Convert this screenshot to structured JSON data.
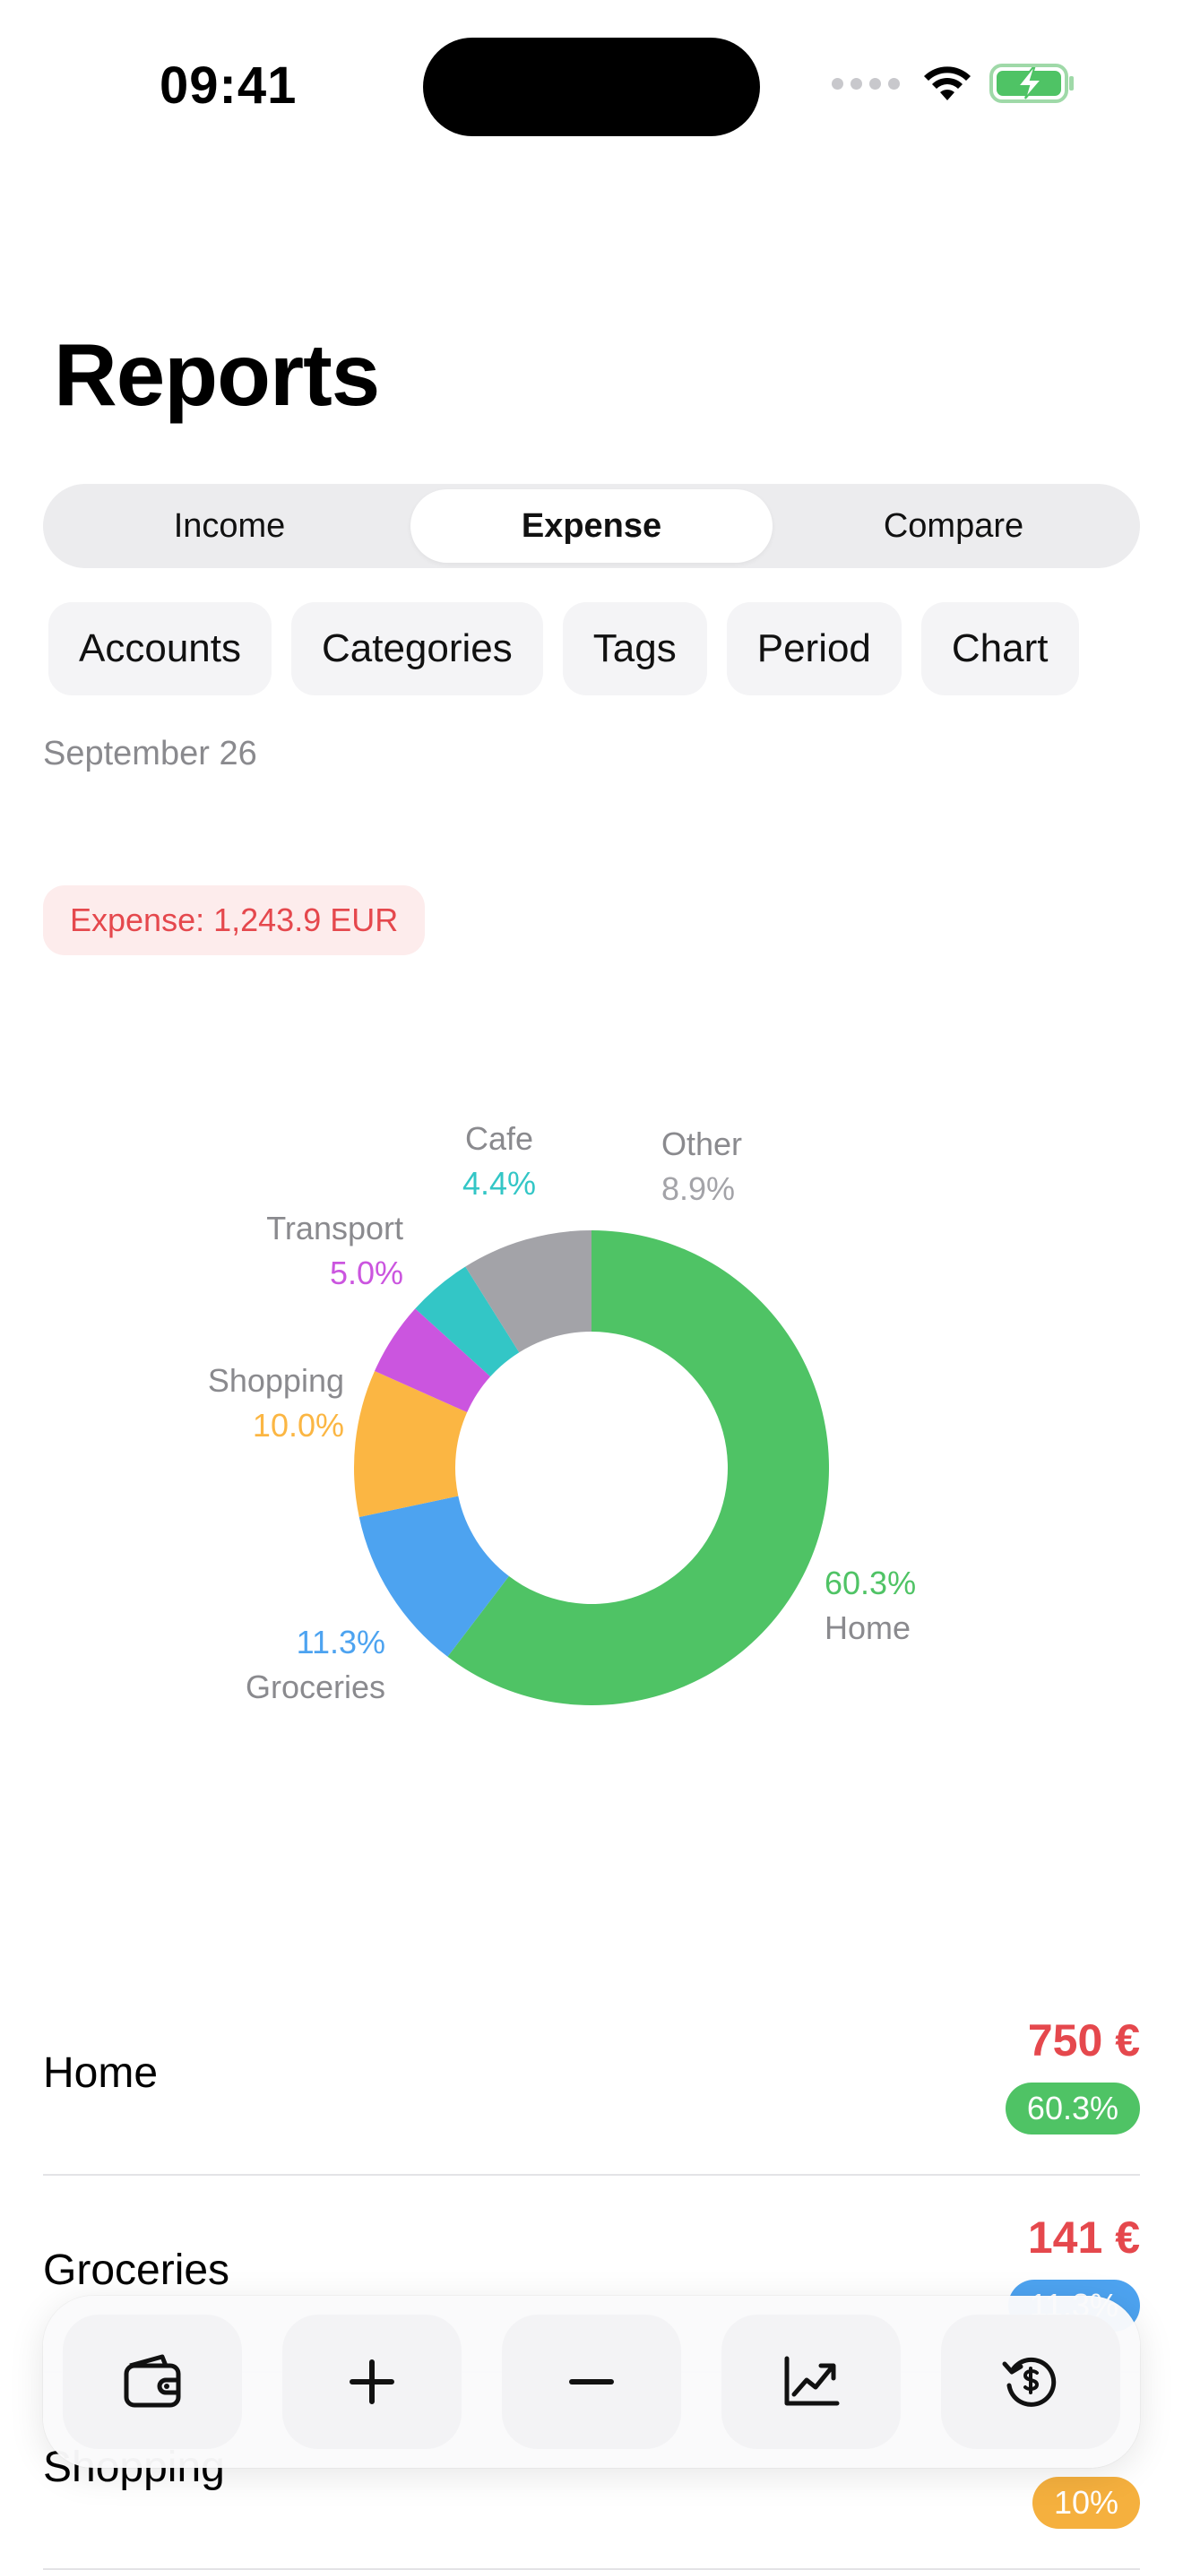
{
  "status_bar": {
    "time": "09:41"
  },
  "header": {
    "title": "Reports"
  },
  "tabs": [
    {
      "label": "Income",
      "active": false
    },
    {
      "label": "Expense",
      "active": true
    },
    {
      "label": "Compare",
      "active": false
    }
  ],
  "filters": [
    "Accounts",
    "Categories",
    "Tags",
    "Period",
    "Chart"
  ],
  "period_label": "September 26",
  "summary": {
    "expense_text": "Expense: 1,243.9 EUR"
  },
  "chart_data": {
    "type": "pie",
    "donut": true,
    "title": "",
    "series": [
      {
        "name": "Home",
        "value": 60.3,
        "label": "60.3%",
        "color": "#4fc365"
      },
      {
        "name": "Groceries",
        "value": 11.3,
        "label": "11.3%",
        "color": "#4da3f0"
      },
      {
        "name": "Shopping",
        "value": 10.0,
        "label": "10.0%",
        "color": "#fbb643"
      },
      {
        "name": "Transport",
        "value": 5.0,
        "label": "5.0%",
        "color": "#cb55df"
      },
      {
        "name": "Cafe",
        "value": 4.4,
        "label": "4.4%",
        "color": "#33c6c6"
      },
      {
        "name": "Other",
        "value": 8.9,
        "label": "8.9%",
        "color": "#a3a3a8"
      }
    ]
  },
  "categories": [
    {
      "name": "Home",
      "amount": "750 €",
      "percent": "60.3%",
      "color": "#4fc365"
    },
    {
      "name": "Groceries",
      "amount": "141 €",
      "percent": "11.3%",
      "color": "#4da3f0"
    },
    {
      "name": "Shopping",
      "amount": "",
      "percent": "10%",
      "color": "#f5b03e"
    }
  ],
  "toolbar": {
    "icons": [
      "wallet-icon",
      "plus-icon",
      "minus-icon",
      "chart-trend-icon",
      "currency-history-icon"
    ]
  },
  "colors": {
    "expense": "#e5484d",
    "accent_green": "#4fc365"
  }
}
